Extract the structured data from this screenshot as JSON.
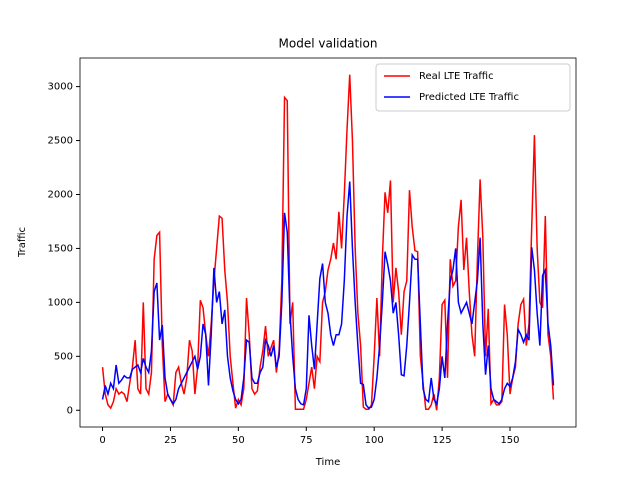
{
  "chart_data": {
    "type": "line",
    "title": "Model validation",
    "x_label": "Time",
    "y_label": "Traffic",
    "x": [
      0,
      1,
      2,
      3,
      4,
      5,
      6,
      7,
      8,
      9,
      10,
      11,
      12,
      13,
      14,
      15,
      16,
      17,
      18,
      19,
      20,
      21,
      22,
      23,
      24,
      25,
      26,
      27,
      28,
      29,
      30,
      31,
      32,
      33,
      34,
      35,
      36,
      37,
      38,
      39,
      40,
      41,
      42,
      43,
      44,
      45,
      46,
      47,
      48,
      49,
      50,
      51,
      52,
      53,
      54,
      55,
      56,
      57,
      58,
      59,
      60,
      61,
      62,
      63,
      64,
      65,
      66,
      67,
      68,
      69,
      70,
      71,
      72,
      73,
      74,
      75,
      76,
      77,
      78,
      79,
      80,
      81,
      82,
      83,
      84,
      85,
      86,
      87,
      88,
      89,
      90,
      91,
      92,
      93,
      94,
      95,
      96,
      97,
      98,
      99,
      100,
      101,
      102,
      103,
      104,
      105,
      106,
      107,
      108,
      109,
      110,
      111,
      112,
      113,
      114,
      115,
      116,
      117,
      118,
      119,
      120,
      121,
      122,
      123,
      124,
      125,
      126,
      127,
      128,
      129,
      130,
      131,
      132,
      133,
      134,
      135,
      136,
      137,
      138,
      139,
      140,
      141,
      142,
      143,
      144,
      145,
      146,
      147,
      148,
      149,
      150,
      151,
      152,
      153,
      154,
      155,
      156,
      157,
      158,
      159,
      160,
      161,
      162,
      163,
      164,
      165,
      166
    ],
    "series": [
      {
        "name": "Real LTE Traffic",
        "color": "#ff0000",
        "values": [
          400,
          150,
          50,
          20,
          80,
          200,
          150,
          170,
          150,
          80,
          250,
          400,
          650,
          200,
          150,
          1000,
          200,
          150,
          350,
          1400,
          1620,
          1650,
          600,
          80,
          150,
          100,
          50,
          350,
          400,
          250,
          150,
          300,
          650,
          550,
          150,
          400,
          1020,
          950,
          700,
          500,
          800,
          1200,
          1500,
          1800,
          1780,
          1300,
          1000,
          500,
          250,
          20,
          100,
          50,
          200,
          1040,
          700,
          200,
          150,
          180,
          400,
          550,
          780,
          500,
          580,
          650,
          350,
          550,
          1200,
          2900,
          2870,
          800,
          1000,
          10,
          10,
          10,
          10,
          100,
          250,
          400,
          200,
          500,
          450,
          1000,
          1100,
          1300,
          1400,
          1550,
          1400,
          1840,
          1500,
          2000,
          2600,
          3110,
          2500,
          1500,
          900,
          600,
          30,
          10,
          10,
          50,
          500,
          1040,
          500,
          1400,
          2020,
          1830,
          2130,
          1000,
          1320,
          1100,
          700,
          1100,
          1200,
          2040,
          1700,
          1480,
          1470,
          500,
          250,
          10,
          10,
          50,
          150,
          0,
          300,
          980,
          1020,
          300,
          1400,
          1150,
          1200,
          1700,
          1950,
          1300,
          1600,
          1100,
          700,
          500,
          1400,
          2140,
          1600,
          500,
          940,
          60,
          100,
          50,
          50,
          80,
          980,
          700,
          150,
          300,
          400,
          800,
          980,
          1030,
          600,
          800,
          1700,
          2550,
          1500,
          1000,
          950,
          1800,
          700,
          500,
          100
        ]
      },
      {
        "name": "Predicted LTE Traffic",
        "color": "#0000ff",
        "values": [
          100,
          230,
          150,
          250,
          200,
          420,
          250,
          280,
          320,
          300,
          300,
          380,
          400,
          420,
          350,
          480,
          400,
          350,
          550,
          1100,
          1180,
          650,
          790,
          300,
          150,
          100,
          60,
          100,
          200,
          250,
          300,
          350,
          400,
          450,
          500,
          380,
          500,
          800,
          700,
          230,
          700,
          1320,
          1000,
          1100,
          800,
          930,
          500,
          300,
          180,
          100,
          60,
          100,
          300,
          650,
          630,
          300,
          250,
          250,
          350,
          400,
          650,
          600,
          500,
          600,
          400,
          500,
          1000,
          1830,
          1650,
          900,
          500,
          200,
          100,
          60,
          50,
          200,
          880,
          600,
          380,
          800,
          1220,
          1360,
          1000,
          900,
          700,
          600,
          700,
          700,
          800,
          1200,
          1800,
          2120,
          1500,
          1000,
          600,
          250,
          240,
          50,
          20,
          30,
          100,
          300,
          600,
          1000,
          1470,
          1350,
          1200,
          900,
          1000,
          700,
          330,
          320,
          600,
          1000,
          1440,
          1400,
          1400,
          800,
          200,
          100,
          80,
          300,
          100,
          60,
          200,
          500,
          300,
          800,
          1200,
          1300,
          1500,
          1000,
          900,
          950,
          1000,
          900,
          800,
          1000,
          1200,
          1600,
          800,
          330,
          600,
          200,
          100,
          80,
          60,
          100,
          200,
          250,
          220,
          300,
          450,
          750,
          700,
          630,
          700,
          650,
          1510,
          1300,
          900,
          600,
          1250,
          1300,
          800,
          600,
          230
        ]
      }
    ],
    "xlim": [
      -8.3,
      174.3
    ],
    "ylim": [
      -155,
      3265
    ],
    "xticks": [
      0,
      25,
      50,
      75,
      100,
      125,
      150
    ],
    "yticks": [
      0,
      500,
      1000,
      1500,
      2000,
      2500,
      3000
    ],
    "legend": "upper right",
    "grid": false
  }
}
